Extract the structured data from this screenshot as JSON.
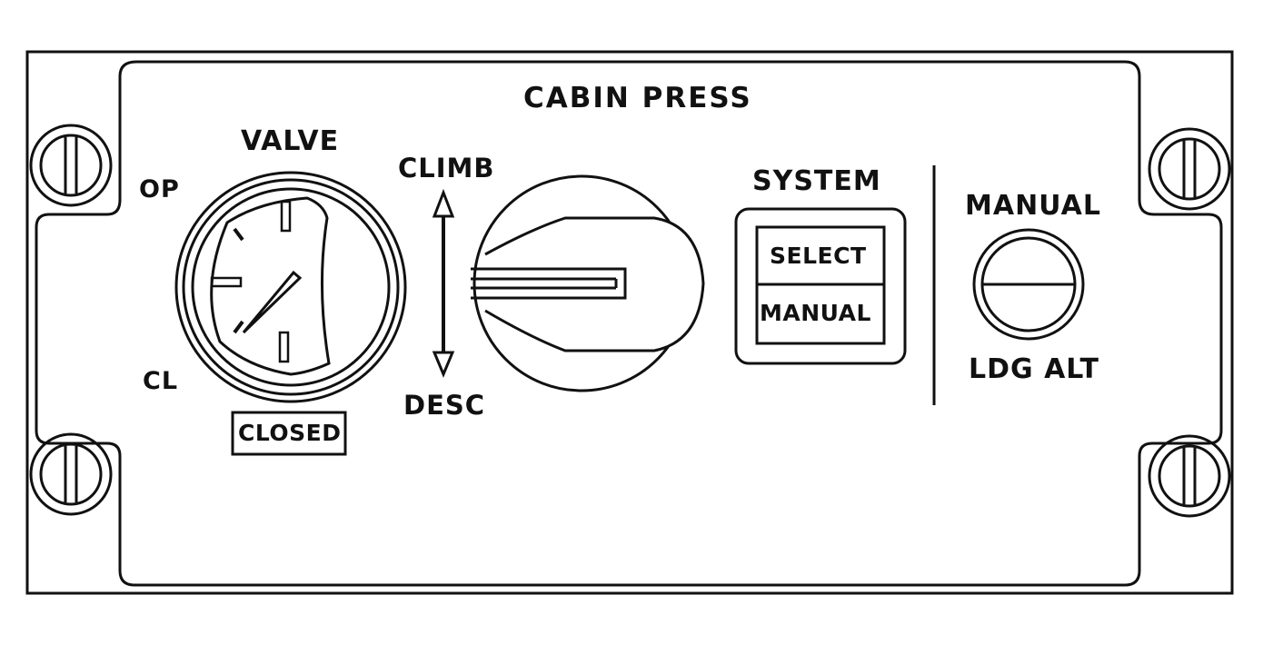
{
  "panel": {
    "title": "CABIN PRESS",
    "valve": {
      "label": "VALVE",
      "open_label": "OP",
      "closed_label": "CL",
      "indicator_light": "CLOSED"
    },
    "rate_selector": {
      "climb_label": "CLIMB",
      "desc_label": "DESC"
    },
    "system": {
      "label": "SYSTEM",
      "upper_legend": "SELECT",
      "lower_legend": "MANUAL"
    },
    "manual_knob": {
      "top_label": "MANUAL",
      "bottom_label": "LDG ALT"
    }
  },
  "colors": {
    "line": "#111111",
    "background": "#ffffff"
  }
}
